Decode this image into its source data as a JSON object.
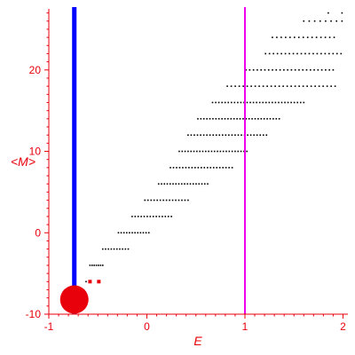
{
  "chart_data": {
    "type": "scatter",
    "title": "",
    "xlabel": "E",
    "ylabel": "<M>",
    "xlim": [
      -1,
      2.05
    ],
    "ylim": [
      -10,
      27.5
    ],
    "x_ticks": [
      -1,
      0,
      1,
      2
    ],
    "y_ticks": [
      -10,
      0,
      10,
      20
    ],
    "x_tick_labels": [
      "-1",
      "0",
      "1",
      "2"
    ],
    "y_tick_labels": [
      "-10",
      "0",
      "10",
      "20"
    ],
    "grid": false,
    "legend": "none",
    "colors": {
      "axis": "#e8000b",
      "points": "#000000",
      "highlight": "#e8000b",
      "vline_blue": "#0000ff",
      "vline_magenta": "#ee00ee"
    },
    "vertical_lines": [
      {
        "x": -0.74,
        "color": "#0000ff"
      },
      {
        "x": 1.0,
        "color": "#ee00ee"
      }
    ],
    "highlight_point": {
      "x": -0.74,
      "y": -8.2
    },
    "highlight_points": [
      {
        "x": -0.58,
        "y": -6.0
      },
      {
        "x": -0.49,
        "y": -6.0
      }
    ],
    "point_rows": [
      {
        "y": -6.0,
        "x_min": -0.74,
        "x_max": -0.62,
        "count": 2
      },
      {
        "y": -4.0,
        "x_min": -0.58,
        "x_max": -0.45,
        "count": 7
      },
      {
        "y": -2.0,
        "x_min": -0.45,
        "x_max": -0.19,
        "count": 10
      },
      {
        "y": 0.0,
        "x_min": -0.29,
        "x_max": 0.02,
        "count": 12
      },
      {
        "y": 2.0,
        "x_min": -0.15,
        "x_max": 0.25,
        "count": 14
      },
      {
        "y": 4.0,
        "x_min": -0.02,
        "x_max": 0.42,
        "count": 15
      },
      {
        "y": 6.0,
        "x_min": 0.12,
        "x_max": 0.62,
        "count": 18
      },
      {
        "y": 8.0,
        "x_min": 0.24,
        "x_max": 0.87,
        "count": 21
      },
      {
        "y": 10.0,
        "x_min": 0.33,
        "x_max": 1.02,
        "count": 24
      },
      {
        "y": 12.0,
        "x_min": 0.42,
        "x_max": 1.22,
        "count": 26
      },
      {
        "y": 14.0,
        "x_min": 0.52,
        "x_max": 1.35,
        "count": 28
      },
      {
        "y": 16.0,
        "x_min": 0.67,
        "x_max": 1.6,
        "count": 30
      },
      {
        "y": 18.0,
        "x_min": 0.82,
        "x_max": 1.92,
        "count": 28
      },
      {
        "y": 20.0,
        "x_min": 1.01,
        "x_max": 1.9,
        "count": 24
      },
      {
        "y": 22.0,
        "x_min": 1.21,
        "x_max": 1.98,
        "count": 20
      },
      {
        "y": 24.0,
        "x_min": 1.28,
        "x_max": 1.91,
        "count": 15
      },
      {
        "y": 26.0,
        "x_min": 1.6,
        "x_max": 1.99,
        "count": 8
      },
      {
        "y": 27.0,
        "x_min": 1.85,
        "x_max": 1.99,
        "count": 2
      }
    ]
  }
}
